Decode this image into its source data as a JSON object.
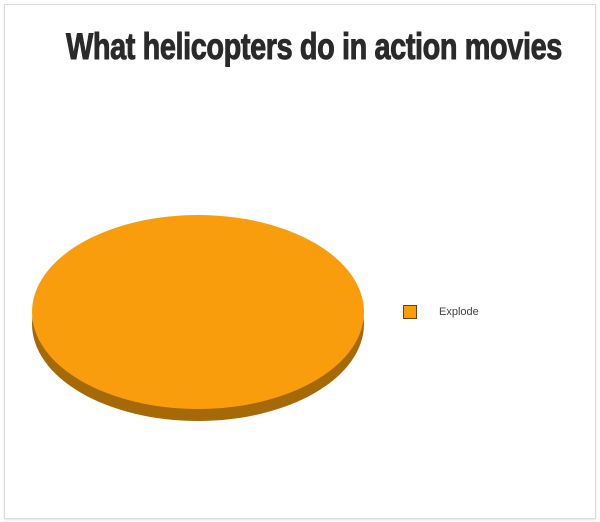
{
  "chart_data": {
    "type": "pie",
    "title": "What helicopters do in action movies",
    "categories": [
      "Explode"
    ],
    "values": [
      100
    ],
    "colors": {
      "Explode": "#F99D0C",
      "Explode_side": "#A56908"
    },
    "style": "3d",
    "legend": "right"
  }
}
